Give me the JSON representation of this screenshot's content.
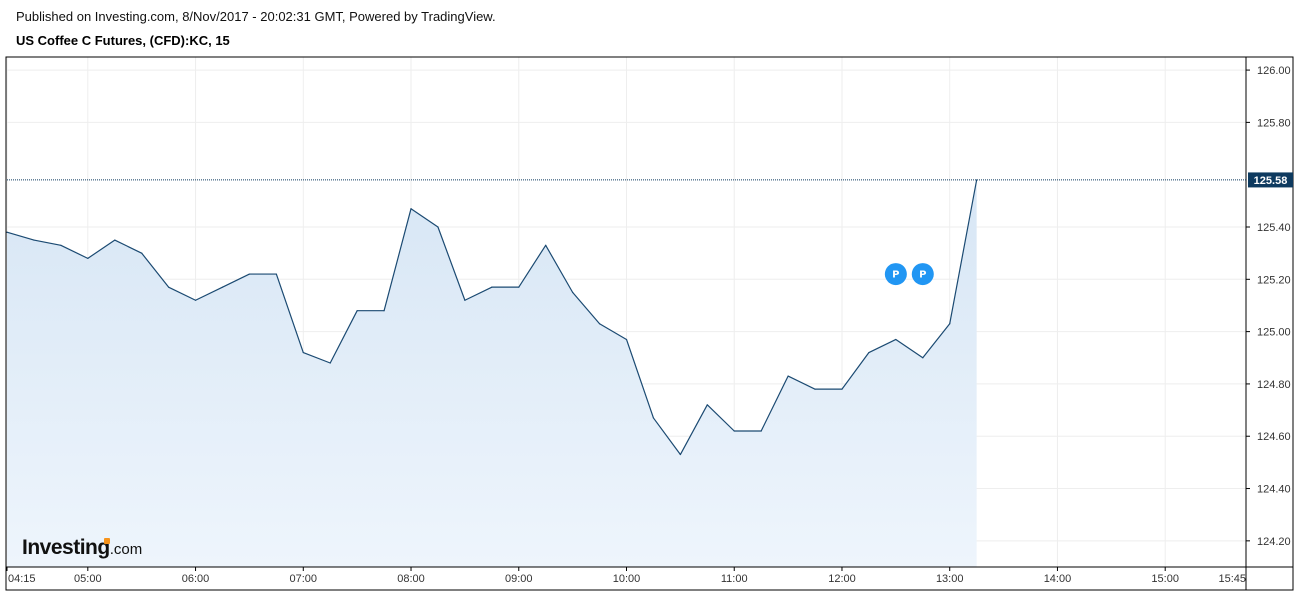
{
  "header": {
    "published": "Published on Investing.com, 8/Nov/2017 - 20:02:31 GMT, Powered by TradingView.",
    "symbol": "US Coffee C Futures, (CFD):KC, 15"
  },
  "logo": {
    "main": "Investing",
    "suffix": ".com"
  },
  "colors": {
    "line": "#1b4a72",
    "area_top": "#d7e6f5",
    "area_bottom": "#eef5fc",
    "grid": "#eeeeee",
    "axis": "#000000",
    "price_tag": "#0e3a5f",
    "marker": "#2196f3"
  },
  "chart_data": {
    "type": "area",
    "x_ticks": [
      "04:15",
      "05:00",
      "06:00",
      "07:00",
      "08:00",
      "09:00",
      "10:00",
      "11:00",
      "12:00",
      "13:00",
      "14:00",
      "15:00",
      "15:45"
    ],
    "y_ticks": [
      "124.20",
      "124.40",
      "124.60",
      "124.80",
      "125.00",
      "125.20",
      "125.40",
      "125.80",
      "126.00"
    ],
    "ylim": [
      124.1,
      126.05
    ],
    "grid": true,
    "last_price": 125.58,
    "last_price_label": "125.58",
    "series": [
      {
        "x": [
          "04:15",
          "04:30",
          "04:45",
          "05:00",
          "05:15",
          "05:30",
          "05:45",
          "06:00",
          "06:15",
          "06:30",
          "06:45",
          "07:00",
          "07:15",
          "07:30",
          "07:45",
          "08:00",
          "08:15",
          "08:30",
          "08:45",
          "09:00",
          "09:15",
          "09:30",
          "09:45",
          "10:00",
          "10:15",
          "10:30",
          "10:45",
          "11:00",
          "11:15",
          "11:30",
          "11:45",
          "12:00",
          "12:15",
          "12:30",
          "12:45",
          "13:00",
          "13:15"
        ],
        "values": [
          125.38,
          125.35,
          125.33,
          125.28,
          125.35,
          125.3,
          125.17,
          125.12,
          125.17,
          125.22,
          125.22,
          124.92,
          124.88,
          125.08,
          125.08,
          125.47,
          125.4,
          125.12,
          125.17,
          125.17,
          125.33,
          125.15,
          125.03,
          124.97,
          124.67,
          124.53,
          124.72,
          124.62,
          124.62,
          124.83,
          124.78,
          124.78,
          124.92,
          124.97,
          124.9,
          125.03,
          125.58
        ]
      }
    ],
    "markers": [
      {
        "label": "P",
        "x": "12:30",
        "value": 125.22
      },
      {
        "label": "P",
        "x": "12:45",
        "value": 125.22
      }
    ]
  }
}
